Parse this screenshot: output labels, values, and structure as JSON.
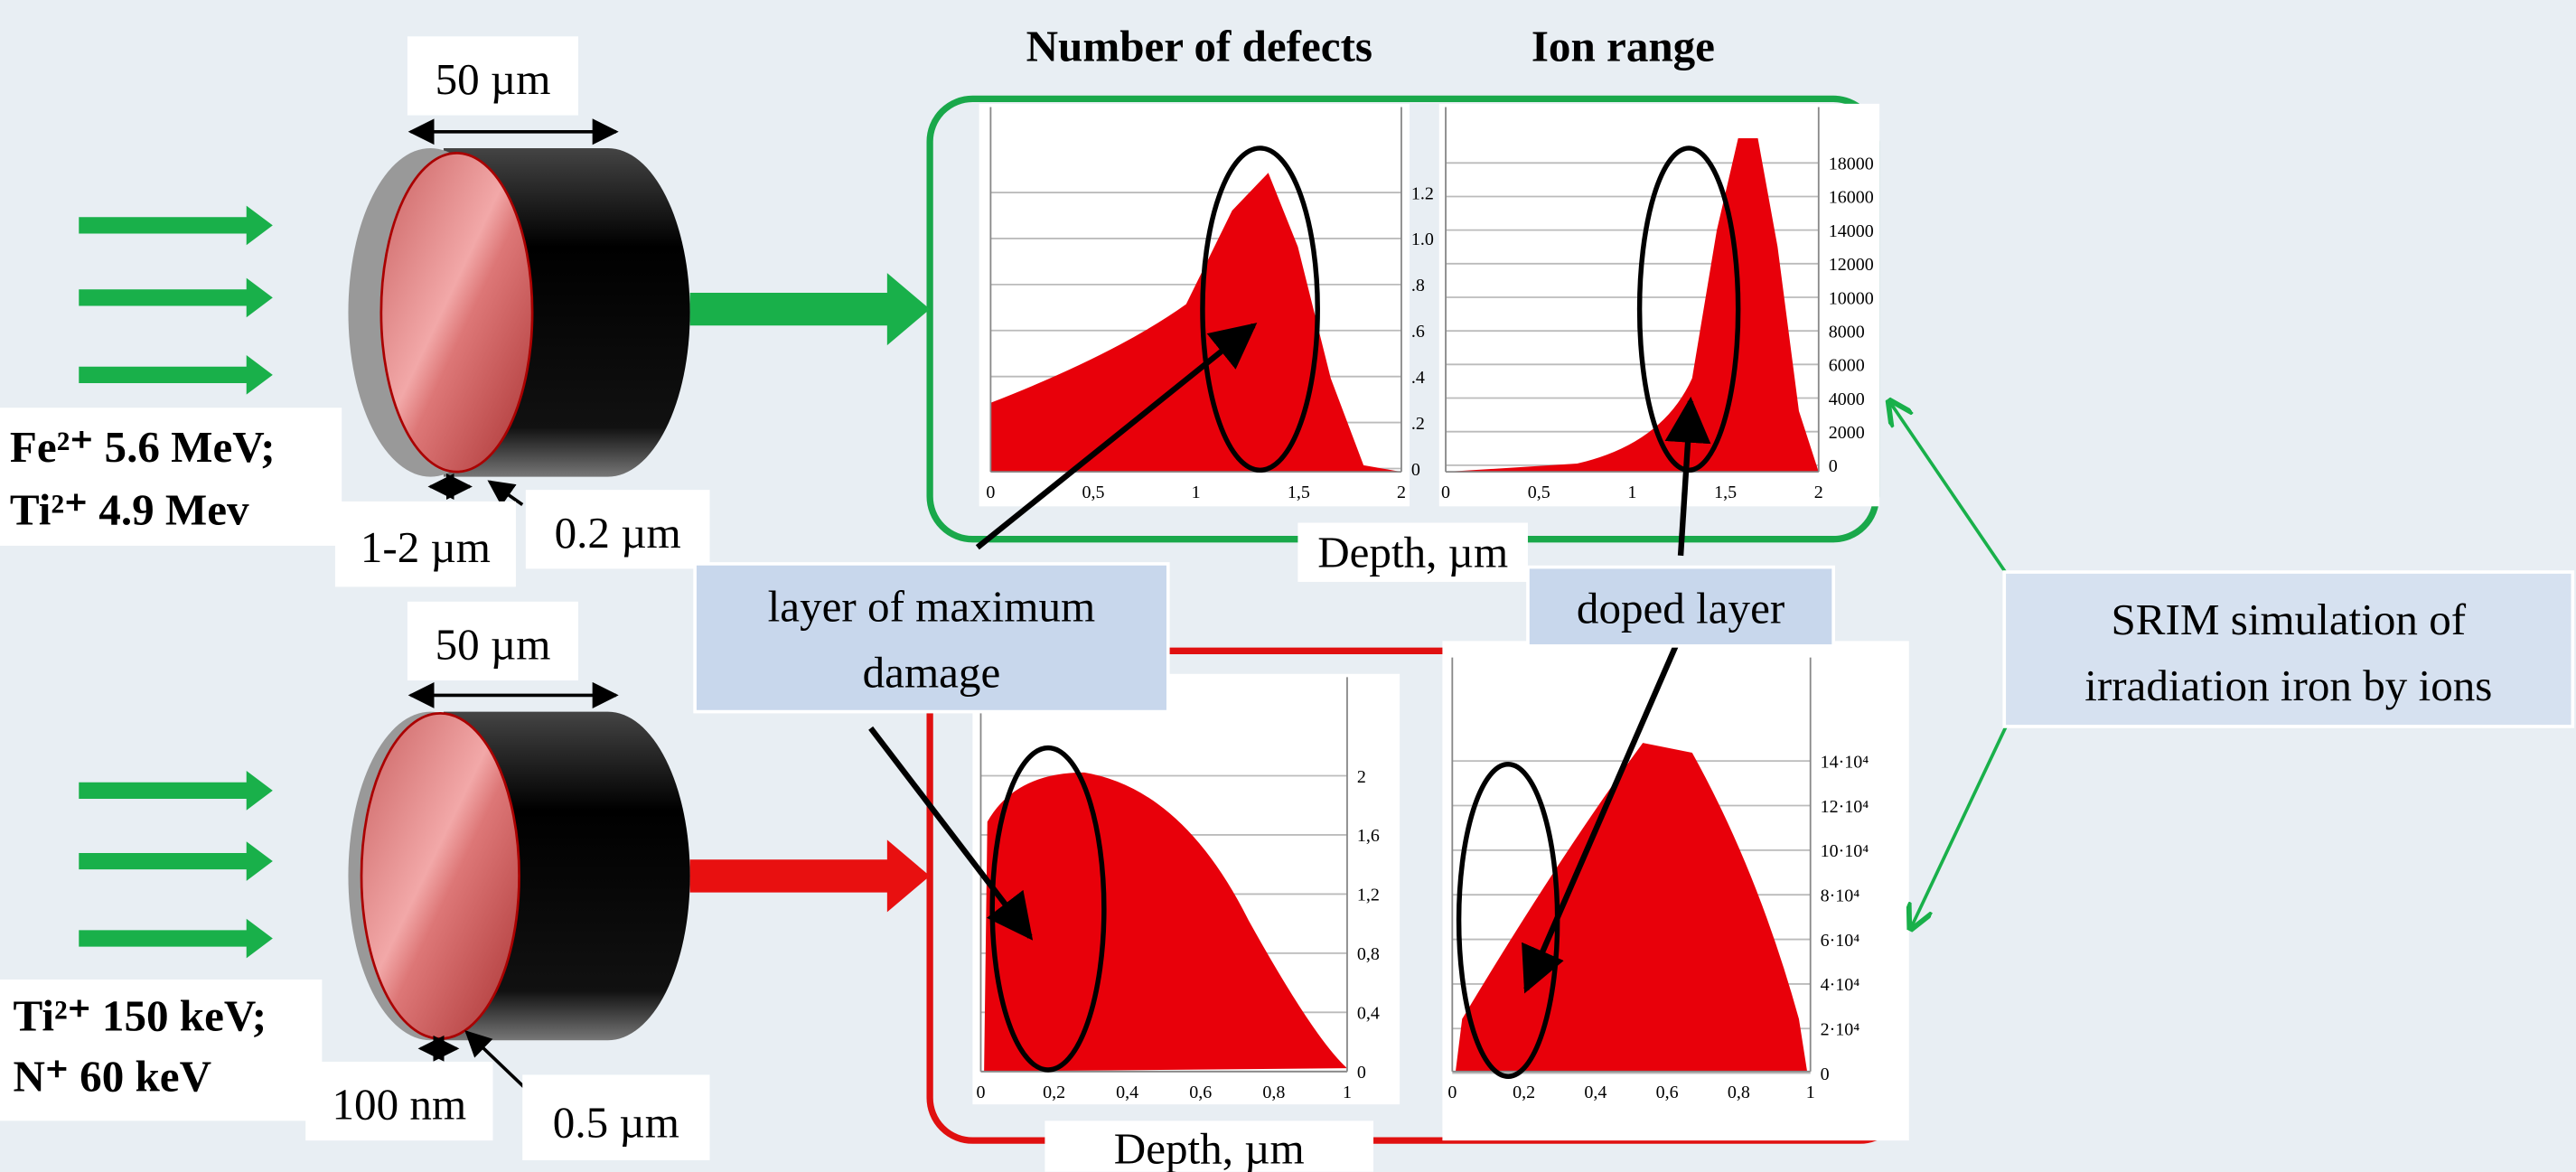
{
  "headers": {
    "defects": "Number of defects",
    "range": "Ion range"
  },
  "top_sample": {
    "width": "50 µm",
    "ions": [
      "Fe²⁺ 5.6 MeV;",
      "Ti²⁺ 4.9 Mev"
    ],
    "dims": [
      "1-2 µm",
      "0.2 µm"
    ]
  },
  "bottom_sample": {
    "width": "50 µm",
    "ions": [
      "Ti²⁺ 150 keV;",
      "N⁺ 60 keV"
    ],
    "dims": [
      "100 nm",
      "0.5 µm"
    ]
  },
  "panels": [
    {
      "xticks": [
        "0",
        "0,5",
        "1",
        "1,5",
        "2"
      ],
      "yticks": [
        "1.2",
        "1.0",
        ".8",
        ".6",
        ".4",
        ".2",
        "0"
      ]
    },
    {
      "xticks": [
        "0",
        "0,5",
        "1",
        "1,5",
        "2"
      ],
      "yticks": [
        "18000",
        "16000",
        "14000",
        "12000",
        "10000",
        "8000",
        "6000",
        "4000",
        "2000",
        "0"
      ]
    },
    {
      "xticks": [
        "0",
        "0,2",
        "0,4",
        "0,6",
        "0,8",
        "1"
      ],
      "yticks": [
        "2",
        "1,6",
        "1,2",
        "0,8",
        "0,4",
        "0"
      ]
    },
    {
      "xticks": [
        "0",
        "0,2",
        "0,4",
        "0,6",
        "0,8",
        "1"
      ],
      "yticks": [
        "14·10⁴",
        "12·10⁴",
        "10·10⁴",
        "8·10⁴",
        "6·10⁴",
        "4·10⁴",
        "2·10⁴",
        "0"
      ]
    }
  ],
  "depth_labels": [
    "Depth, µm",
    "Depth, µm"
  ],
  "callouts": {
    "max_damage": [
      "layer of maximum",
      "damage"
    ],
    "doped": "doped layer",
    "srim": [
      "SRIM simulation of",
      "irradiation iron by ions"
    ]
  }
}
